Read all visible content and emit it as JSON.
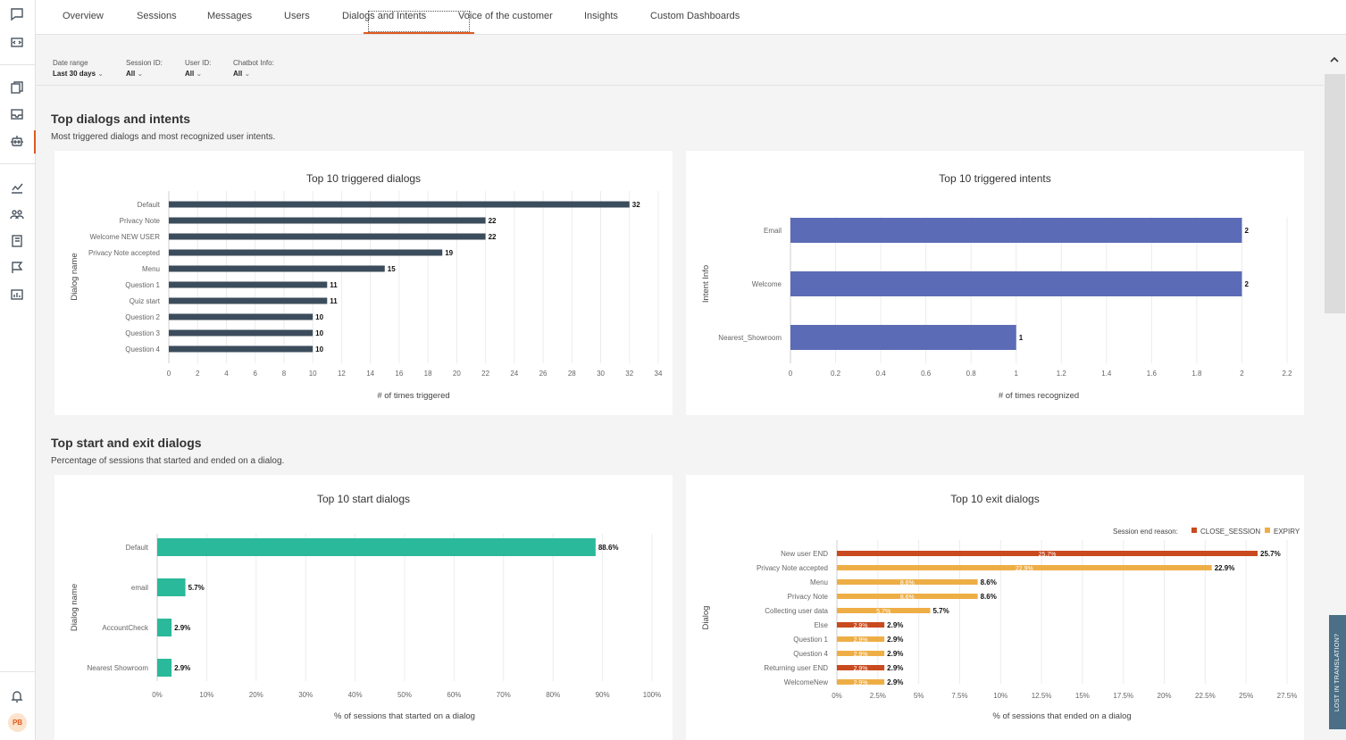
{
  "tabs": [
    {
      "label": "Overview"
    },
    {
      "label": "Sessions"
    },
    {
      "label": "Messages"
    },
    {
      "label": "Users"
    },
    {
      "label": "Dialogs and Intents"
    },
    {
      "label": "Voice of the customer"
    },
    {
      "label": "Insights"
    },
    {
      "label": "Custom Dashboards"
    }
  ],
  "active_tab": "Dialogs and Intents",
  "filters": [
    {
      "label": "Date range",
      "value": "Last 30 days"
    },
    {
      "label": "Session ID:",
      "value": "All"
    },
    {
      "label": "User ID:",
      "value": "All"
    },
    {
      "label": "Chatbot Info:",
      "value": "All"
    }
  ],
  "sections": {
    "dialogs_intents": {
      "title": "Top dialogs and intents",
      "subtitle": "Most triggered dialogs and most recognized user intents."
    },
    "start_exit": {
      "title": "Top start and exit dialogs",
      "subtitle": "Percentage of sessions that started and ended on a dialog."
    }
  },
  "user": {
    "initials": "PB"
  },
  "feedback_tab": "LOST IN TRANSLATION?",
  "icons": [
    "chat-icon",
    "code-icon",
    "copy-icon",
    "inbox-icon",
    "bot-icon",
    "analytics-icon",
    "users-icon",
    "book-icon",
    "flag-icon",
    "dashboard-icon",
    "bell-icon"
  ],
  "colors": {
    "accent": "#e05a1f",
    "dialogs_bar": "#3b4d5c",
    "intents_bar": "#5b6bb5",
    "start_bar": "#2ab99a",
    "close_session": "#c94a1e",
    "expiry": "#eeae46"
  },
  "chart_data": [
    {
      "type": "bar",
      "orientation": "horizontal",
      "title": "Top 10 triggered dialogs",
      "xlabel": "# of times triggered",
      "ylabel": "Dialog name",
      "categories": [
        "Default",
        "Privacy Note",
        "Welcome NEW USER",
        "Privacy Note accepted",
        "Menu",
        "Question 1",
        "Quiz start",
        "Question 2",
        "Question 3",
        "Question 4"
      ],
      "values": [
        32,
        22,
        22,
        19,
        15,
        11,
        11,
        10,
        10,
        10
      ],
      "xlim": [
        0,
        34
      ],
      "xticks": [
        0,
        2,
        4,
        6,
        8,
        10,
        12,
        14,
        16,
        18,
        20,
        22,
        24,
        26,
        28,
        30,
        32,
        34
      ],
      "grid": true
    },
    {
      "type": "bar",
      "orientation": "horizontal",
      "title": "Top 10 triggered intents",
      "xlabel": "# of times recognized",
      "ylabel": "Intent Info",
      "categories": [
        "Email",
        "Welcome",
        "Nearest_Showroom"
      ],
      "values": [
        2,
        2,
        1
      ],
      "xlim": [
        0,
        2.2
      ],
      "xticks": [
        "0",
        "0.2",
        "0.4",
        "0.6",
        "0.8",
        "1",
        "1.2",
        "1.4",
        "1.6",
        "1.8",
        "2",
        "2.2"
      ],
      "grid": true
    },
    {
      "type": "bar",
      "orientation": "horizontal",
      "title": "Top 10 start dialogs",
      "xlabel": "% of sessions that started on a dialog",
      "ylabel": "Dialog name",
      "categories": [
        "Default",
        "email",
        "AccountCheck",
        "Nearest Showroom"
      ],
      "values": [
        88.6,
        5.7,
        2.9,
        2.9
      ],
      "labels": [
        "88.6%",
        "5.7%",
        "2.9%",
        "2.9%"
      ],
      "xlim": [
        0,
        100
      ],
      "xticks": [
        "0%",
        "10%",
        "20%",
        "30%",
        "40%",
        "50%",
        "60%",
        "70%",
        "80%",
        "90%",
        "100%"
      ],
      "grid": true
    },
    {
      "type": "bar",
      "orientation": "horizontal",
      "title": "Top 10 exit dialogs",
      "xlabel": "% of sessions that ended on a dialog",
      "ylabel": "Dialog",
      "legend_title": "Session end reason:",
      "legend_position": "top-right",
      "series": [
        {
          "name": "CLOSE_SESSION",
          "color": "#c94a1e"
        },
        {
          "name": "EXPIRY",
          "color": "#eeae46"
        }
      ],
      "categories": [
        "New user END",
        "Privacy Note accepted",
        "Menu",
        "Privacy Note",
        "Collecting user data",
        "Else",
        "Question 1",
        "Question 4",
        "Returning user END",
        "WelcomeNew"
      ],
      "values": [
        25.7,
        22.9,
        8.6,
        8.6,
        5.7,
        2.9,
        2.9,
        2.9,
        2.9,
        2.9
      ],
      "series_index": [
        0,
        1,
        1,
        1,
        1,
        0,
        1,
        1,
        0,
        1
      ],
      "labels": [
        "25.7%",
        "22.9%",
        "8.6%",
        "8.6%",
        "5.7%",
        "2.9%",
        "2.9%",
        "2.9%",
        "2.9%",
        "2.9%"
      ],
      "xlim": [
        0,
        27.5
      ],
      "xticks": [
        "0%",
        "2.5%",
        "5%",
        "7.5%",
        "10%",
        "12.5%",
        "15%",
        "17.5%",
        "20%",
        "22.5%",
        "25%",
        "27.5%"
      ],
      "grid": true
    }
  ]
}
